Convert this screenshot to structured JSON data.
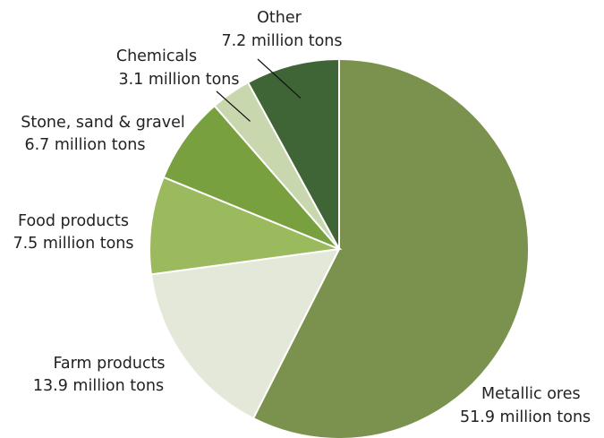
{
  "chart_data": {
    "type": "pie",
    "slices": [
      {
        "label": "Metallic ores",
        "value_text": "51.9 million tons",
        "value": 51.9,
        "color": "#7a924e"
      },
      {
        "label": "Farm products",
        "value_text": "13.9 million tons",
        "value": 13.9,
        "color": "#e4e8d8"
      },
      {
        "label": "Food products",
        "value_text": "7.5 million tons",
        "value": 7.5,
        "color": "#9bba5e"
      },
      {
        "label": "Stone, sand & gravel",
        "value_text": "6.7 million tons",
        "value": 6.7,
        "color": "#78a03e"
      },
      {
        "label": "Chemicals",
        "value_text": "3.1 million tons",
        "value": 3.1,
        "color": "#c9d7ae"
      },
      {
        "label": "Other",
        "value_text": "7.2 million tons",
        "value": 7.2,
        "color": "#3f6435"
      }
    ]
  }
}
